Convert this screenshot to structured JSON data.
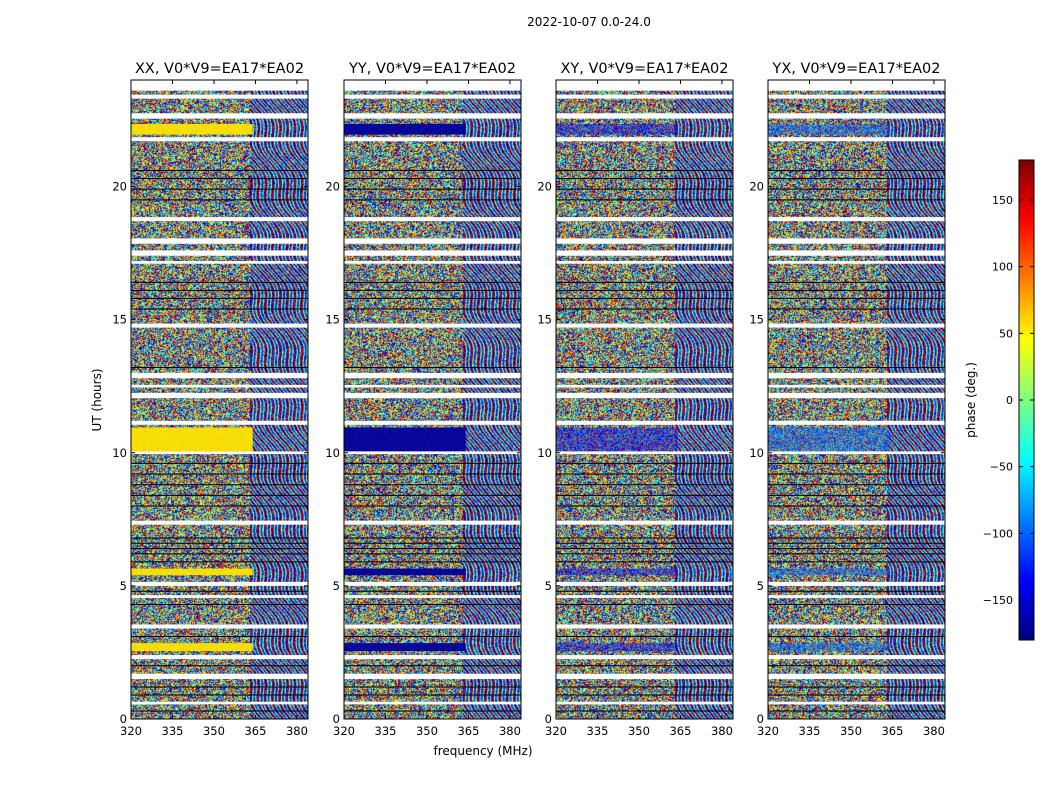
{
  "figure": {
    "suptitle": "2022-10-07 0.0-24.0",
    "xlabel": "frequency (MHz)",
    "ylabel": "UT (hours)"
  },
  "chart_data": {
    "type": "heatmap",
    "title": "2022-10-07 0.0-24.0",
    "xlabel": "frequency (MHz)",
    "ylabel": "UT (hours)",
    "xlim": [
      320,
      384
    ],
    "ylim": [
      0,
      24
    ],
    "xticks": [
      320,
      335,
      350,
      365,
      380
    ],
    "yticks": [
      0,
      5,
      10,
      15,
      20
    ],
    "panels": [
      {
        "name": "xx",
        "title": "XX, V0*V9=EA17*EA02",
        "coherent_phase_deg": 55
      },
      {
        "name": "yy",
        "title": "YY, V0*V9=EA17*EA02",
        "coherent_phase_deg": -170
      },
      {
        "name": "xy",
        "title": "XY, V0*V9=EA17*EA02",
        "coherent_phase_deg": -140
      },
      {
        "name": "yx",
        "title": "YX, V0*V9=EA17*EA02",
        "coherent_phase_deg": -100
      }
    ],
    "colorbar": {
      "label": "phase (deg.)",
      "range": [
        -180,
        180
      ],
      "ticks": [
        150,
        100,
        50,
        0,
        -50,
        -100,
        -150
      ],
      "tick_labels": [
        "150",
        "100",
        "50",
        "0",
        "−50",
        "−100",
        "−150"
      ],
      "colormap": "jet"
    },
    "coherent_bands_ut": [
      {
        "t0": 21.95,
        "t1": 22.35,
        "f1": 364
      },
      {
        "t0": 10.05,
        "t1": 10.95,
        "f1": 364
      },
      {
        "t0": 5.4,
        "t1": 5.65,
        "f1": 364
      },
      {
        "t0": 2.55,
        "t1": 2.85,
        "f1": 364
      }
    ],
    "flagged_gaps_ut": [
      [
        23.3,
        23.45
      ],
      [
        22.55,
        22.75
      ],
      [
        21.7,
        21.85
      ],
      [
        18.7,
        18.85
      ],
      [
        17.85,
        18.05
      ],
      [
        17.4,
        17.6
      ],
      [
        17.1,
        17.2
      ],
      [
        14.7,
        14.85
      ],
      [
        12.8,
        13.0
      ],
      [
        12.45,
        12.55
      ],
      [
        12.05,
        12.25
      ],
      [
        11.05,
        11.2
      ],
      [
        9.95,
        10.05
      ],
      [
        7.3,
        7.45
      ],
      [
        5.0,
        5.15
      ],
      [
        4.55,
        4.65
      ],
      [
        3.4,
        3.55
      ],
      [
        2.25,
        2.4
      ],
      [
        1.5,
        1.7
      ],
      [
        0.55,
        0.65
      ]
    ],
    "black_lines_ut": [
      20.6,
      20.3,
      19.9,
      19.5,
      16.4,
      16.1,
      15.8,
      15.4,
      13.2,
      9.6,
      9.2,
      8.8,
      8.4,
      8.0,
      6.8,
      6.6,
      6.4,
      6.2,
      5.9,
      4.8,
      4.3,
      3.1,
      2.0,
      1.2,
      0.9,
      0.3
    ]
  }
}
